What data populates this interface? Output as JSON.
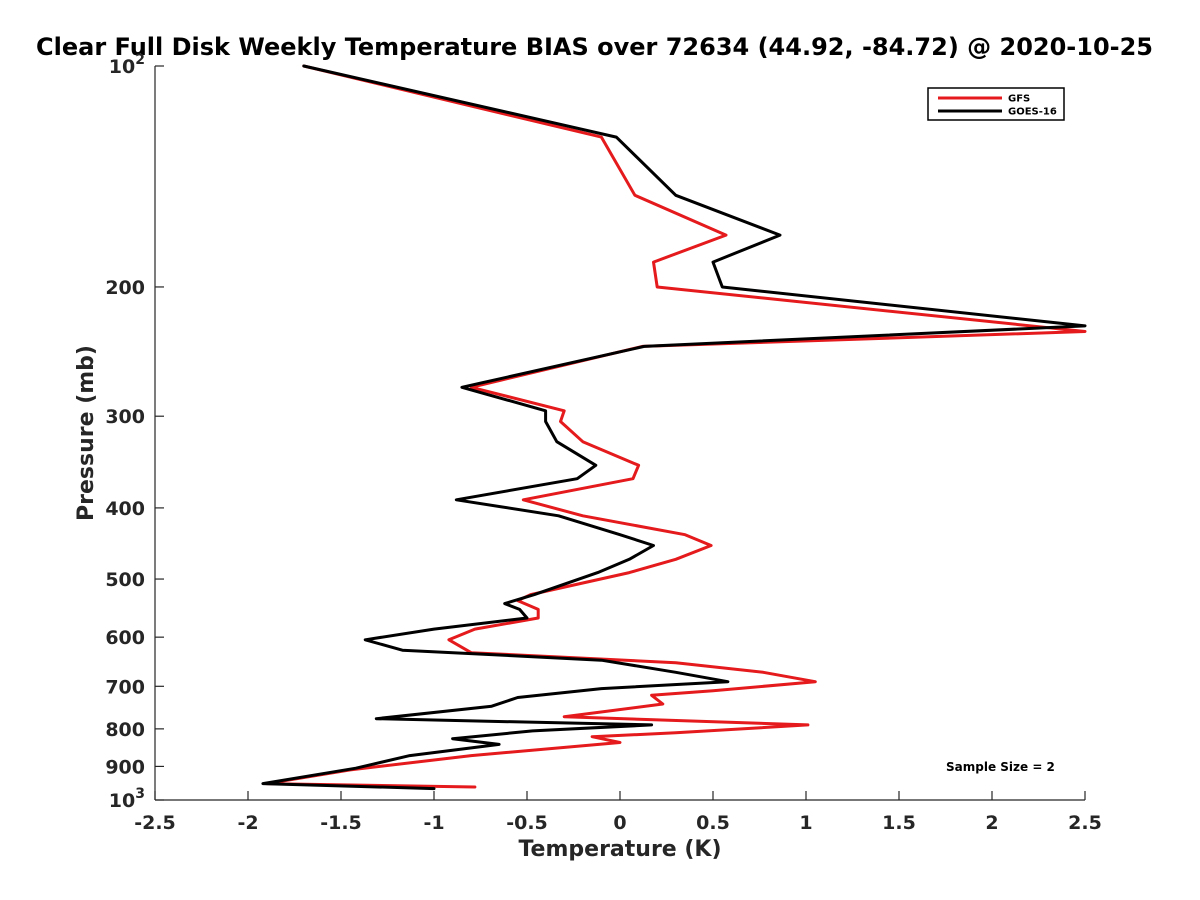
{
  "chart_data": {
    "type": "line",
    "title": "Clear Full Disk Weekly Temperature BIAS over 72634 (44.92, -84.72) @ 2020-10-25",
    "xlabel": "Temperature (K)",
    "ylabel": "Pressure (mb)",
    "xlim": [
      -2.5,
      2.5
    ],
    "ylim": [
      100,
      1000
    ],
    "y_scale": "log",
    "y_reversed": true,
    "grid": false,
    "legend_position": "top-right",
    "x_ticks": [
      {
        "value": -2.5,
        "label": "-2.5"
      },
      {
        "value": -2,
        "label": "-2"
      },
      {
        "value": -1.5,
        "label": "-1.5"
      },
      {
        "value": -1,
        "label": "-1"
      },
      {
        "value": -0.5,
        "label": "-0.5"
      },
      {
        "value": 0,
        "label": "0"
      },
      {
        "value": 0.5,
        "label": "0.5"
      },
      {
        "value": 1,
        "label": "1"
      },
      {
        "value": 1.5,
        "label": "1.5"
      },
      {
        "value": 2,
        "label": "2"
      },
      {
        "value": 2.5,
        "label": "2.5"
      }
    ],
    "y_ticks": [
      {
        "value": 100,
        "base": "10",
        "exp": "2"
      },
      {
        "value": 200,
        "base": "200",
        "exp": ""
      },
      {
        "value": 300,
        "base": "300",
        "exp": ""
      },
      {
        "value": 400,
        "base": "400",
        "exp": ""
      },
      {
        "value": 500,
        "base": "500",
        "exp": ""
      },
      {
        "value": 600,
        "base": "600",
        "exp": ""
      },
      {
        "value": 700,
        "base": "700",
        "exp": ""
      },
      {
        "value": 800,
        "base": "800",
        "exp": ""
      },
      {
        "value": 900,
        "base": "900",
        "exp": ""
      },
      {
        "value": 1000,
        "base": "10",
        "exp": "3"
      }
    ],
    "series": [
      {
        "name": "GFS",
        "color": "#e41a1c",
        "points": [
          [
            -1.7,
            100
          ],
          [
            -0.1,
            125
          ],
          [
            0.08,
            150
          ],
          [
            0.57,
            170
          ],
          [
            0.18,
            185
          ],
          [
            0.2,
            200
          ],
          [
            2.5,
            230
          ],
          [
            0.12,
            241
          ],
          [
            -0.8,
            274
          ],
          [
            -0.3,
            295
          ],
          [
            -0.32,
            305
          ],
          [
            -0.2,
            325
          ],
          [
            0.1,
            350
          ],
          [
            0.07,
            365
          ],
          [
            -0.52,
            390
          ],
          [
            -0.2,
            410
          ],
          [
            0.35,
            435
          ],
          [
            0.49,
            450
          ],
          [
            0.3,
            470
          ],
          [
            0.05,
            490
          ],
          [
            -0.48,
            525
          ],
          [
            -0.55,
            535
          ],
          [
            -0.44,
            550
          ],
          [
            -0.44,
            565
          ],
          [
            -0.78,
            585
          ],
          [
            -0.92,
            605
          ],
          [
            -0.8,
            630
          ],
          [
            0.3,
            650
          ],
          [
            0.77,
            670
          ],
          [
            1.05,
            690
          ],
          [
            0.5,
            710
          ],
          [
            0.17,
            720
          ],
          [
            0.23,
            740
          ],
          [
            -0.3,
            770
          ],
          [
            1.01,
            790
          ],
          [
            0.3,
            810
          ],
          [
            -0.15,
            820
          ],
          [
            0.0,
            835
          ],
          [
            -0.8,
            870
          ],
          [
            -1.45,
            910
          ],
          [
            -1.9,
            950
          ],
          [
            -0.78,
            960
          ]
        ]
      },
      {
        "name": "GOES-16",
        "color": "#000000",
        "points": [
          [
            -1.7,
            100
          ],
          [
            -0.02,
            125
          ],
          [
            0.3,
            150
          ],
          [
            0.86,
            170
          ],
          [
            0.5,
            185
          ],
          [
            0.55,
            200
          ],
          [
            2.5,
            226
          ],
          [
            0.13,
            241
          ],
          [
            -0.85,
            274
          ],
          [
            -0.4,
            295
          ],
          [
            -0.4,
            305
          ],
          [
            -0.34,
            325
          ],
          [
            -0.13,
            350
          ],
          [
            -0.23,
            365
          ],
          [
            -0.88,
            390
          ],
          [
            -0.33,
            410
          ],
          [
            0.0,
            435
          ],
          [
            0.18,
            450
          ],
          [
            0.05,
            470
          ],
          [
            -0.12,
            490
          ],
          [
            -0.46,
            525
          ],
          [
            -0.62,
            540
          ],
          [
            -0.54,
            550
          ],
          [
            -0.5,
            565
          ],
          [
            -1.0,
            585
          ],
          [
            -1.37,
            605
          ],
          [
            -1.17,
            625
          ],
          [
            -0.1,
            645
          ],
          [
            0.3,
            670
          ],
          [
            0.58,
            690
          ],
          [
            -0.1,
            705
          ],
          [
            -0.55,
            725
          ],
          [
            -0.69,
            745
          ],
          [
            -1.31,
            775
          ],
          [
            0.17,
            790
          ],
          [
            -0.47,
            805
          ],
          [
            -0.9,
            825
          ],
          [
            -0.65,
            840
          ],
          [
            -1.13,
            870
          ],
          [
            -1.42,
            905
          ],
          [
            -1.92,
            950
          ],
          [
            -1.0,
            965
          ]
        ]
      }
    ],
    "annotation": "Sample Size = 2"
  }
}
